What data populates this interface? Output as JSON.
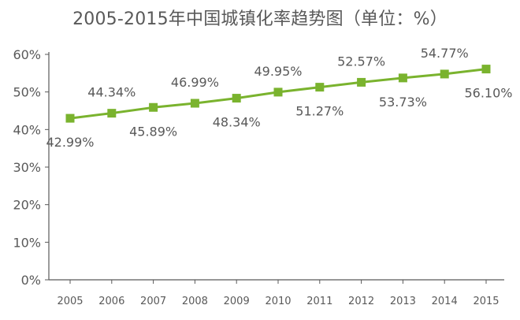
{
  "chart_data": {
    "type": "line",
    "title": "2005-2015年中国城镇化率趋势图（单位：%）",
    "xlabel": "",
    "ylabel": "",
    "categories": [
      "2005",
      "2006",
      "2007",
      "2008",
      "2009",
      "2010",
      "2011",
      "2012",
      "2013",
      "2014",
      "2015"
    ],
    "series": [
      {
        "values": [
          42.99,
          44.34,
          45.89,
          46.99,
          48.34,
          49.95,
          51.27,
          52.57,
          53.73,
          54.77,
          56.1
        ],
        "data_labels": [
          "42.99%",
          "44.34%",
          "45.89%",
          "46.99%",
          "48.34%",
          "49.95%",
          "51.27%",
          "52.57%",
          "53.73%",
          "54.77%",
          "56.10%"
        ],
        "color": "#7AB32E"
      }
    ],
    "ylim": [
      0,
      60
    ],
    "yticks": [
      0,
      10,
      20,
      30,
      40,
      50,
      60
    ],
    "ytick_labels": [
      "0%",
      "10%",
      "20%",
      "30%",
      "40%",
      "50%",
      "60%"
    ],
    "grid": false,
    "legend": "none",
    "marker": "square",
    "axis_color": "#595959"
  }
}
